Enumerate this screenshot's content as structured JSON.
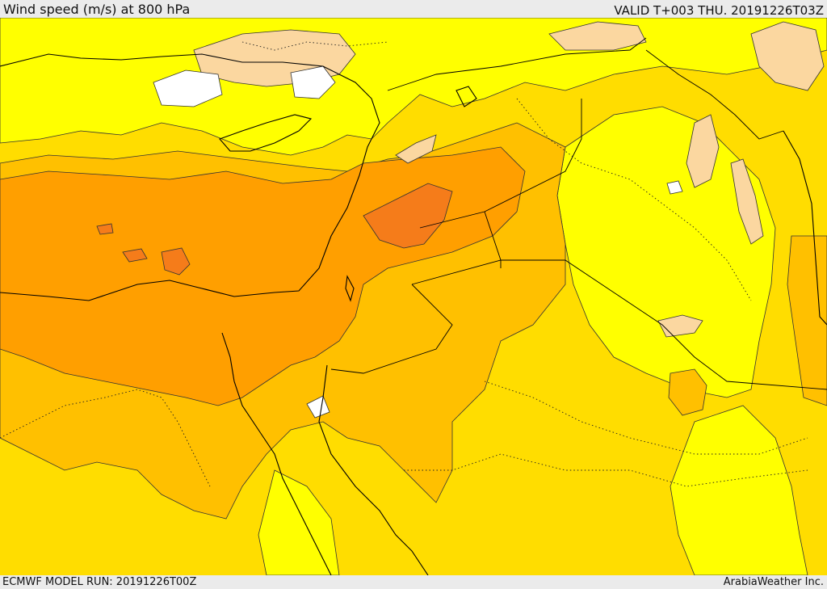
{
  "header": {
    "title": "Wind speed (m/s) at 800 hPa",
    "valid_time": "VALID T+003 THU. 20191226T03Z"
  },
  "footer": {
    "model_run": "ECMWF MODEL RUN: 20191226T00Z",
    "credit": "ArabiaWeather Inc."
  },
  "map": {
    "field": "wind speed",
    "level": "800 hPa",
    "palette": {
      "calm": "#ffffff",
      "light": "#fbd7a0",
      "weak": "#ffff00",
      "moderate": "#ffdd00",
      "fresh": "#ffc000",
      "strong": "#ff9f00",
      "very_strong": "#f57c1a"
    },
    "coastline_color": "#000000",
    "border_style": "dotted",
    "contour_color": "#333333"
  }
}
